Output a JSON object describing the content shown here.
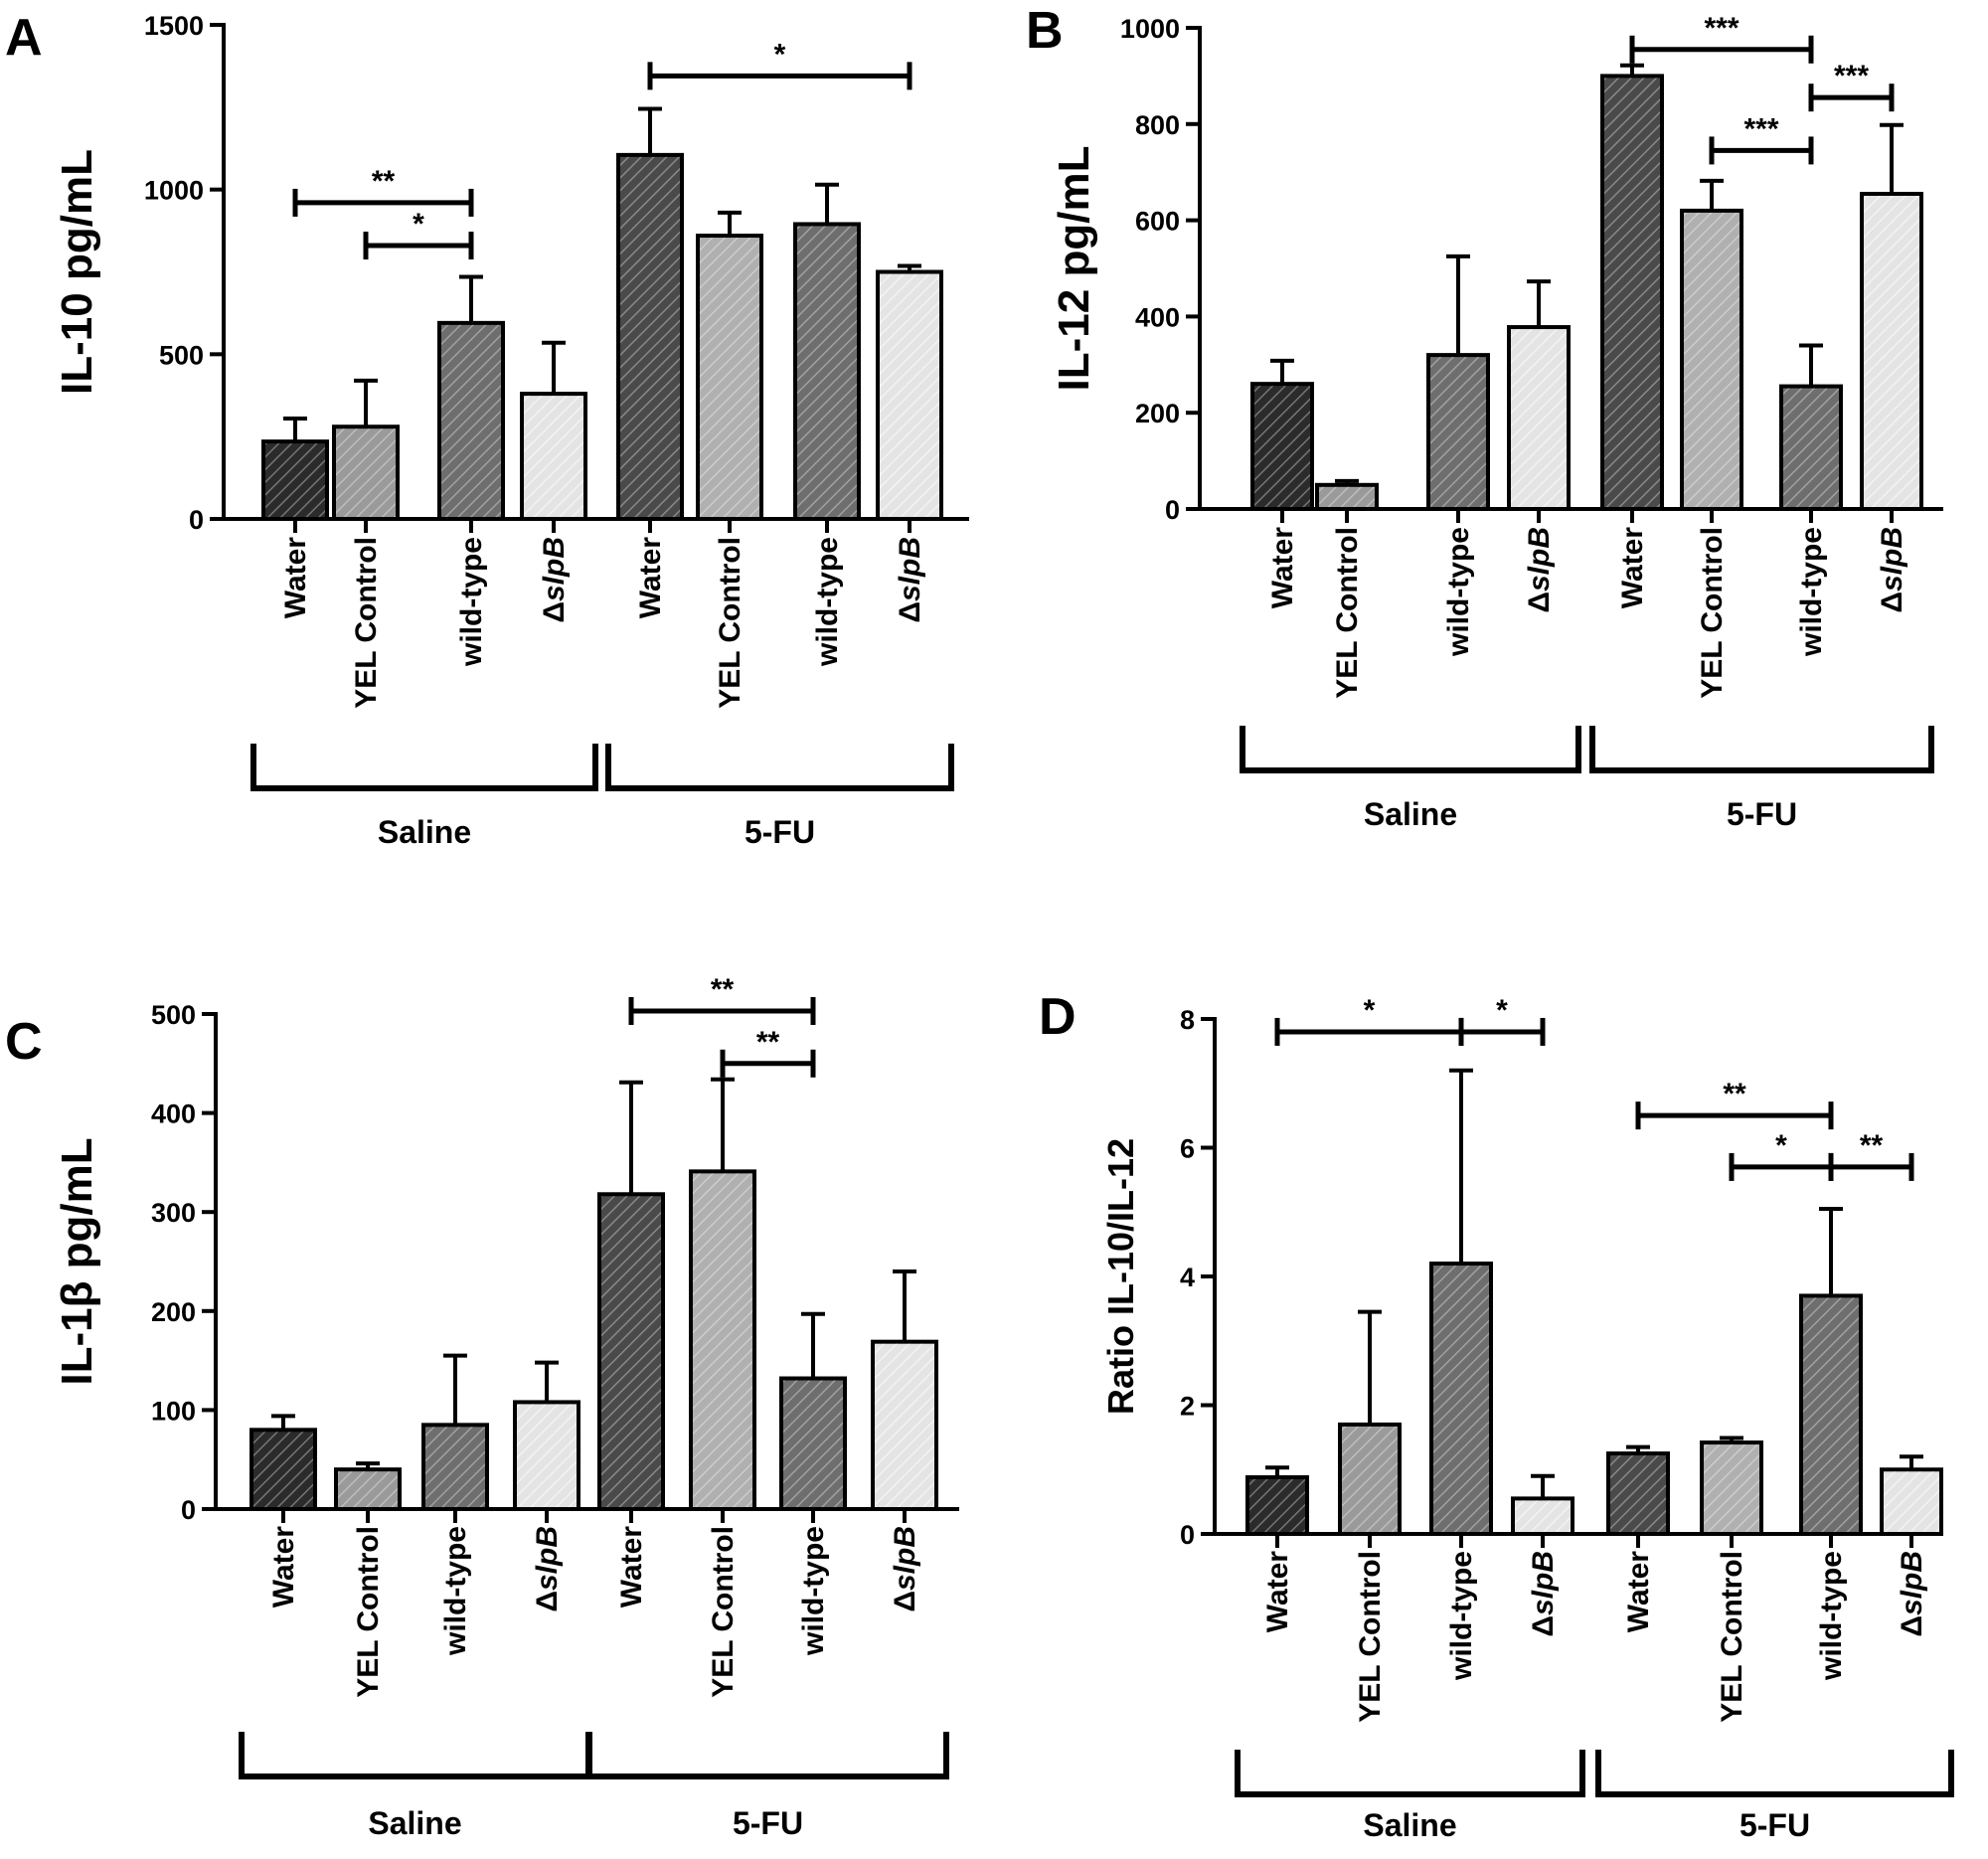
{
  "chart_data": [
    {
      "type": "bar",
      "panel_letter": "A",
      "ylabel": "IL-10 pg/mL",
      "ylim": [
        0,
        1500
      ],
      "yticks": [
        0,
        500,
        1000,
        1500
      ],
      "categories": [
        "Water",
        "YEL Control",
        "wild-type",
        "ΔslpB",
        "Water",
        "YEL Control",
        "wild-type",
        "ΔslpB"
      ],
      "groups": [
        {
          "label": "Saline",
          "start": 0,
          "end": 3
        },
        {
          "label": "5-FU",
          "start": 4,
          "end": 7
        }
      ],
      "values": [
        235,
        280,
        595,
        380,
        1105,
        860,
        895,
        750
      ],
      "errors": [
        70,
        140,
        140,
        155,
        140,
        70,
        120,
        18
      ],
      "shades": [
        "#2b2b2b",
        "#9a9a9a",
        "#6e6e6e",
        "#e4e4e4",
        "#4a4a4a",
        "#b0b0b0",
        "#6e6e6e",
        "#e4e4e4"
      ],
      "significance": [
        {
          "from": 0,
          "to": 2,
          "y": 960,
          "label": "**"
        },
        {
          "from": 1,
          "to": 2,
          "y": 830,
          "label": "*"
        },
        {
          "from": 4,
          "to": 7,
          "y": 1345,
          "label": "*"
        }
      ]
    },
    {
      "type": "bar",
      "panel_letter": "B",
      "ylabel": "IL-12 pg/mL",
      "ylim": [
        0,
        1000
      ],
      "yticks": [
        0,
        200,
        400,
        600,
        800,
        1000
      ],
      "categories": [
        "Water",
        "YEL Control",
        "wild-type",
        "ΔslpB",
        "Water",
        "YEL Control",
        "wild-type",
        "ΔslpB"
      ],
      "groups": [
        {
          "label": "Saline",
          "start": 0,
          "end": 3
        },
        {
          "label": "5-FU",
          "start": 4,
          "end": 7
        }
      ],
      "values": [
        260,
        50,
        320,
        378,
        900,
        620,
        255,
        655
      ],
      "errors": [
        48,
        8,
        205,
        95,
        22,
        62,
        85,
        143
      ],
      "shades": [
        "#2b2b2b",
        "#9a9a9a",
        "#6e6e6e",
        "#e4e4e4",
        "#4a4a4a",
        "#b0b0b0",
        "#6e6e6e",
        "#e4e4e4"
      ],
      "significance": [
        {
          "from": 4,
          "to": 6,
          "y": 955,
          "label": "***"
        },
        {
          "from": 5,
          "to": 6,
          "y": 745,
          "label": "***"
        },
        {
          "from": 6,
          "to": 7,
          "y": 855,
          "label": "***"
        }
      ]
    },
    {
      "type": "bar",
      "panel_letter": "C",
      "ylabel": "IL-1β pg/mL",
      "ylim": [
        0,
        500
      ],
      "yticks": [
        0,
        100,
        200,
        300,
        400,
        500
      ],
      "categories": [
        "Water",
        "YEL Control",
        "wild-type",
        "ΔslpB",
        "Water",
        "YEL Control",
        "wild-type",
        "ΔslpB"
      ],
      "groups": [
        {
          "label": "Saline",
          "start": 0,
          "end": 3
        },
        {
          "label": "5-FU",
          "start": 4,
          "end": 7
        }
      ],
      "values": [
        80,
        40,
        85,
        108,
        318,
        341,
        132,
        169
      ],
      "errors": [
        14,
        6,
        70,
        40,
        113,
        93,
        65,
        71
      ],
      "shades": [
        "#2b2b2b",
        "#9a9a9a",
        "#6e6e6e",
        "#e4e4e4",
        "#4a4a4a",
        "#b0b0b0",
        "#6e6e6e",
        "#e4e4e4"
      ],
      "significance": [
        {
          "from": 4,
          "to": 6,
          "y": 503,
          "label": "**"
        },
        {
          "from": 5,
          "to": 6,
          "y": 450,
          "label": "**"
        }
      ]
    },
    {
      "type": "bar",
      "panel_letter": "D",
      "ylabel": "Ratio IL-10/IL-12",
      "ylim": [
        0,
        8
      ],
      "yticks": [
        0,
        2,
        4,
        6,
        8
      ],
      "categories": [
        "Water",
        "YEL Control",
        "wild-type",
        "ΔslpB",
        "Water",
        "YEL Control",
        "wild-type",
        "ΔslpB"
      ],
      "groups": [
        {
          "label": "Saline",
          "start": 0,
          "end": 3
        },
        {
          "label": "5-FU",
          "start": 4,
          "end": 7
        }
      ],
      "values": [
        0.88,
        1.7,
        4.2,
        0.55,
        1.25,
        1.42,
        3.7,
        1.0
      ],
      "errors": [
        0.15,
        1.75,
        3.0,
        0.35,
        0.1,
        0.07,
        1.35,
        0.2
      ],
      "shades": [
        "#2b2b2b",
        "#9a9a9a",
        "#6e6e6e",
        "#e4e4e4",
        "#4a4a4a",
        "#b0b0b0",
        "#6e6e6e",
        "#e4e4e4"
      ],
      "significance": [
        {
          "from": 0,
          "to": 2,
          "y": 7.8,
          "label": "*"
        },
        {
          "from": 2,
          "to": 3,
          "y": 7.8,
          "label": "*"
        },
        {
          "from": 4,
          "to": 6,
          "y": 6.5,
          "label": "**"
        },
        {
          "from": 5,
          "to": 6,
          "y": 5.7,
          "label": "*"
        },
        {
          "from": 6,
          "to": 7,
          "y": 5.7,
          "label": "**"
        }
      ]
    }
  ]
}
